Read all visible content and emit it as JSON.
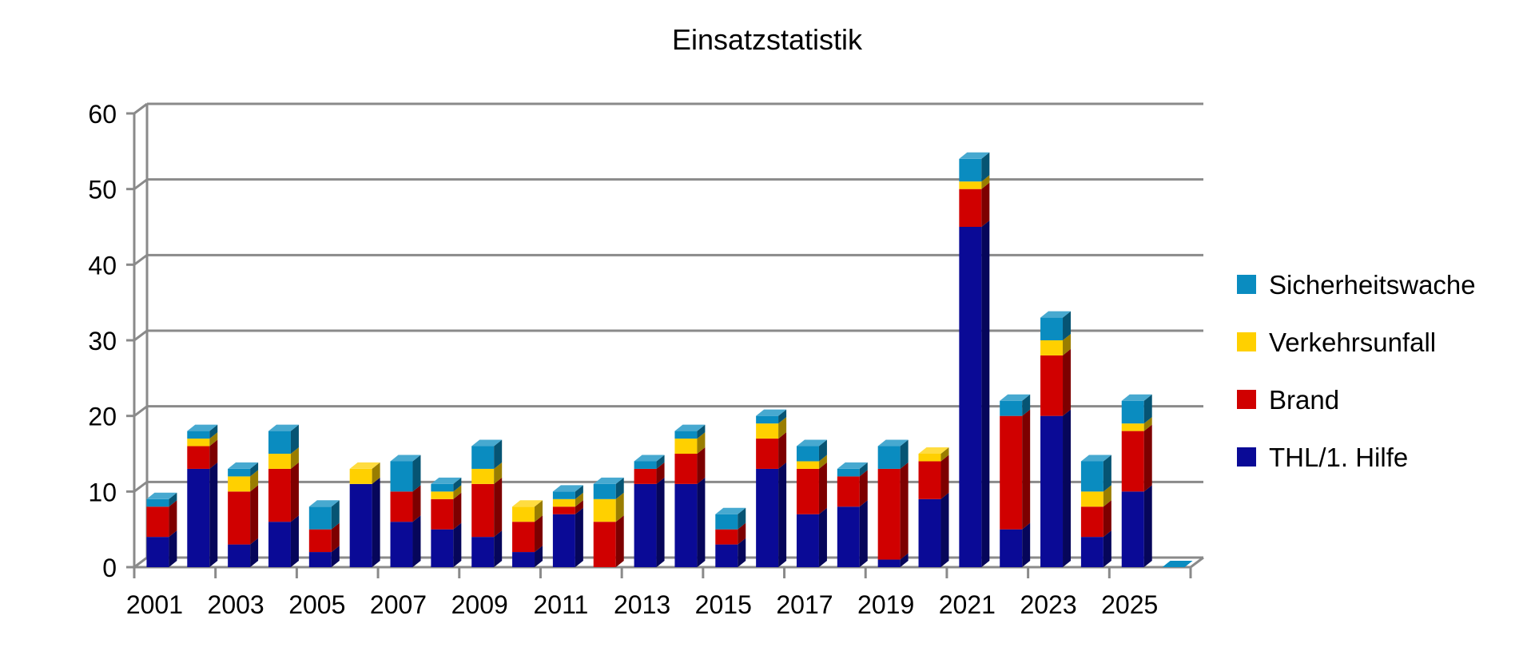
{
  "chart_data": {
    "type": "bar",
    "stacked": true,
    "title": "Einsatzstatistik",
    "xlabel": "",
    "ylabel": "",
    "ylim": [
      0,
      60
    ],
    "yticks": [
      0,
      10,
      20,
      30,
      40,
      50,
      60
    ],
    "grid": true,
    "legend_position": "right",
    "categories": [
      "2001",
      "2002",
      "2003",
      "2004",
      "2005",
      "2006",
      "2007",
      "2008",
      "2009",
      "2010",
      "2011",
      "2012",
      "2013",
      "2014",
      "2015",
      "2016",
      "2017",
      "2018",
      "2019",
      "2020",
      "2021",
      "2022",
      "2023",
      "2024",
      "2025",
      "2026"
    ],
    "x_tick_labels": [
      "2001",
      "2003",
      "2005",
      "2007",
      "2009",
      "2011",
      "2013",
      "2015",
      "2017",
      "2019",
      "2021",
      "2023",
      "2025"
    ],
    "series": [
      {
        "name": "THL/1. Hilfe",
        "color": "#0A0A96",
        "values": [
          4,
          13,
          3,
          6,
          2,
          11,
          6,
          5,
          4,
          2,
          7,
          0,
          11,
          11,
          3,
          13,
          7,
          8,
          1,
          9,
          45,
          5,
          20,
          4,
          10,
          0
        ]
      },
      {
        "name": "Brand",
        "color": "#D00000",
        "values": [
          4,
          3,
          7,
          7,
          3,
          0,
          4,
          4,
          7,
          4,
          1,
          6,
          2,
          4,
          2,
          4,
          6,
          4,
          12,
          5,
          5,
          15,
          8,
          4,
          8,
          0
        ]
      },
      {
        "name": "Verkehrsunfall",
        "color": "#FFD000",
        "values": [
          0,
          1,
          2,
          2,
          0,
          2,
          0,
          1,
          2,
          2,
          1,
          3,
          0,
          2,
          0,
          2,
          1,
          0,
          0,
          1,
          1,
          0,
          2,
          2,
          1,
          0
        ]
      },
      {
        "name": "Sicherheitswache",
        "color": "#0A8CC0",
        "values": [
          1,
          1,
          1,
          3,
          3,
          0,
          4,
          1,
          3,
          0,
          1,
          2,
          1,
          1,
          2,
          1,
          2,
          1,
          3,
          0,
          3,
          2,
          3,
          4,
          3,
          0
        ]
      }
    ]
  }
}
